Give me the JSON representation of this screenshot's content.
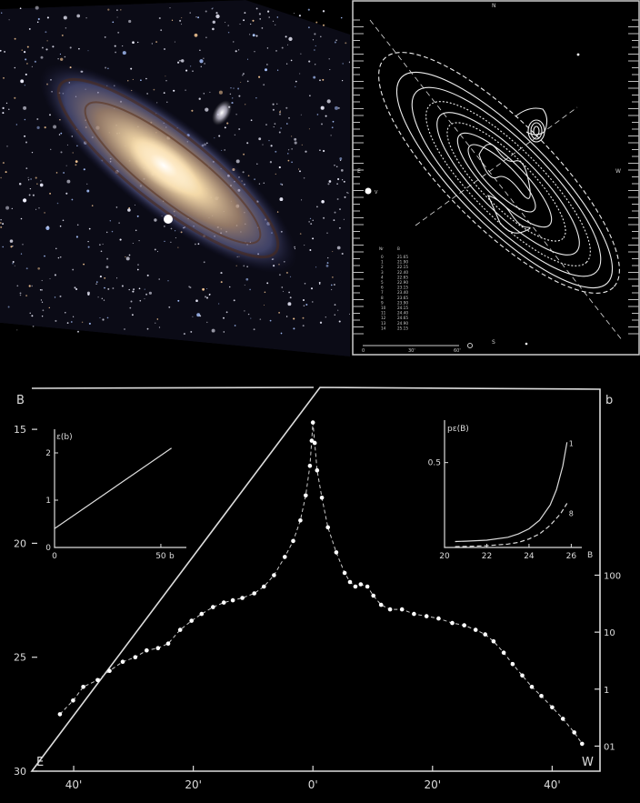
{
  "contour_map": {
    "top_mark": "N",
    "bottom_mark": "S",
    "east_mark": "E",
    "west_mark": "W",
    "companion_label": "V",
    "scale_ticks": [
      "0",
      "30'",
      "60'"
    ],
    "table_headers": [
      "Nr",
      "B"
    ],
    "table_rows": [
      [
        "0",
        "21.65"
      ],
      [
        "1",
        "21.90"
      ],
      [
        "2",
        "22.15"
      ],
      [
        "3",
        "22.40"
      ],
      [
        "4",
        "22.65"
      ],
      [
        "5",
        "22.90"
      ],
      [
        "6",
        "23.15"
      ],
      [
        "7",
        "23.40"
      ],
      [
        "8",
        "23.65"
      ],
      [
        "9",
        "23.90"
      ],
      [
        "10",
        "24.15"
      ],
      [
        "11",
        "24.40"
      ],
      [
        "12",
        "24.65"
      ],
      [
        "13",
        "24.90"
      ],
      [
        "14",
        "25.15"
      ]
    ]
  },
  "chart_data": [
    {
      "type": "scatter",
      "ylabel": "B",
      "y2label": "b",
      "left_corner": "E",
      "right_corner": "W",
      "xticks": [
        "40'",
        "20'",
        "0'",
        "20'",
        "40'"
      ],
      "yticks": [
        "15",
        "20",
        "25",
        "30"
      ],
      "y2ticks": [
        "100",
        "10",
        "1",
        "01"
      ],
      "ylim": [
        30,
        13.2
      ],
      "xlim": [
        -47,
        48
      ],
      "series": [
        {
          "values": [
            [
              -42.3,
              27.5
            ],
            [
              -40.1,
              26.9
            ],
            [
              -38.4,
              26.3
            ],
            [
              -36.0,
              26.0
            ],
            [
              -34.0,
              25.6
            ],
            [
              -31.8,
              25.2
            ],
            [
              -29.7,
              25.0
            ],
            [
              -27.8,
              24.7
            ],
            [
              -25.9,
              24.6
            ],
            [
              -24.2,
              24.4
            ],
            [
              -22.2,
              23.8
            ],
            [
              -20.3,
              23.4
            ],
            [
              -18.6,
              23.1
            ],
            [
              -16.7,
              22.8
            ],
            [
              -14.9,
              22.6
            ],
            [
              -13.4,
              22.5
            ],
            [
              -11.8,
              22.4
            ],
            [
              -9.8,
              22.2
            ],
            [
              -8.2,
              21.9
            ],
            [
              -6.5,
              21.4
            ],
            [
              -4.7,
              20.6
            ],
            [
              -3.3,
              19.9
            ],
            [
              -2.1,
              19.0
            ],
            [
              -1.2,
              17.9
            ],
            [
              -0.5,
              16.6
            ],
            [
              -0.2,
              15.5
            ],
            [
              0.0,
              14.7
            ],
            [
              0.3,
              15.6
            ],
            [
              0.7,
              16.8
            ],
            [
              1.5,
              18.0
            ],
            [
              2.5,
              19.3
            ],
            [
              3.9,
              20.4
            ],
            [
              5.3,
              21.3
            ],
            [
              6.2,
              21.7
            ],
            [
              7.1,
              21.9
            ],
            [
              8.0,
              21.8
            ],
            [
              9.1,
              21.9
            ],
            [
              10.1,
              22.3
            ],
            [
              11.4,
              22.7
            ],
            [
              12.9,
              22.9
            ],
            [
              14.9,
              22.9
            ],
            [
              16.9,
              23.1
            ],
            [
              19.0,
              23.2
            ],
            [
              21.0,
              23.3
            ],
            [
              23.3,
              23.5
            ],
            [
              25.3,
              23.6
            ],
            [
              27.2,
              23.8
            ],
            [
              28.8,
              24.0
            ],
            [
              30.2,
              24.3
            ],
            [
              31.9,
              24.8
            ],
            [
              33.4,
              25.3
            ],
            [
              35.0,
              25.8
            ],
            [
              36.6,
              26.3
            ],
            [
              38.2,
              26.7
            ],
            [
              40.0,
              27.2
            ],
            [
              41.8,
              27.7
            ],
            [
              43.7,
              28.3
            ],
            [
              45.0,
              28.8
            ]
          ]
        }
      ]
    },
    {
      "type": "line",
      "ylabel": "ε(b)",
      "xlabel": "b",
      "xticks": [
        "0",
        "50"
      ],
      "yticks": [
        "0",
        "1",
        "2"
      ],
      "xlim": [
        0,
        62
      ],
      "ylim": [
        0,
        2.5
      ],
      "series": [
        {
          "x": [
            0,
            55
          ],
          "values": [
            0.4,
            2.1
          ]
        }
      ]
    },
    {
      "type": "line",
      "ylabel": "pε(B)",
      "xlabel": "B",
      "xticks": [
        "20",
        "22",
        "24",
        "26"
      ],
      "yticks": [
        "0.5"
      ],
      "xlim": [
        20,
        26.5
      ],
      "ylim": [
        0,
        0.75
      ],
      "series": [
        {
          "name": "1",
          "x": [
            20.5,
            21,
            22,
            23,
            23.5,
            24,
            24.5,
            25,
            25.3,
            25.6,
            25.8
          ],
          "values": [
            0.035,
            0.037,
            0.043,
            0.06,
            0.08,
            0.11,
            0.16,
            0.25,
            0.34,
            0.48,
            0.62
          ]
        },
        {
          "name": "8",
          "x": [
            20.5,
            21,
            22,
            23,
            23.5,
            24,
            24.5,
            25,
            25.5,
            25.8
          ],
          "values": [
            0.005,
            0.006,
            0.01,
            0.02,
            0.03,
            0.05,
            0.08,
            0.13,
            0.2,
            0.26
          ]
        }
      ]
    }
  ]
}
